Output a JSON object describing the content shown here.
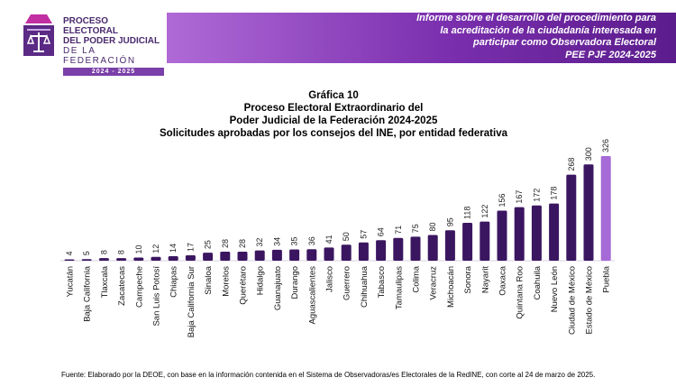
{
  "logo": {
    "line1": "PROCESO ELECTORAL",
    "line2": "DEL PODER JUDICIAL",
    "line3": "DE LA FEDERACIÓN",
    "years": "2024 - 2025"
  },
  "header": {
    "lines": [
      "Informe sobre el desarrollo del procedimiento para",
      "la acreditación de la ciudadanía interesada en",
      "participar como Observadora Electoral",
      "PEE PJF 2024-2025"
    ]
  },
  "chart_data": {
    "type": "bar",
    "title_lines": [
      "Gráfica 10",
      "Proceso Electoral Extraordinario del",
      "Poder Judicial de la Federación 2024-2025",
      "Solicitudes aprobadas por los consejos del INE, por entidad federativa"
    ],
    "categories": [
      "Yucatán",
      "Baja California",
      "Tlaxcala",
      "Zacatecas",
      "Campeche",
      "San Luis Potosí",
      "Chiapas",
      "Baja California Sur",
      "Sinaloa",
      "Morelos",
      "Querétaro",
      "Hidalgo",
      "Guanajuato",
      "Durango",
      "Aguascalientes",
      "Jalisco",
      "Guerrero",
      "Chihuahua",
      "Tabasco",
      "Tamaulipas",
      "Colima",
      "Veracruz",
      "Michoacán",
      "Sonora",
      "Nayarit",
      "Oaxaca",
      "Quintana Roo",
      "Coahuila",
      "Nuevo León",
      "Ciudad de México",
      "Estado de México",
      "Puebla"
    ],
    "values": [
      4,
      5,
      8,
      8,
      10,
      12,
      14,
      17,
      25,
      28,
      28,
      32,
      34,
      35,
      36,
      41,
      50,
      57,
      64,
      71,
      75,
      80,
      95,
      118,
      122,
      156,
      167,
      172,
      178,
      268,
      300,
      326
    ],
    "ylim": [
      0,
      326
    ],
    "grid": false,
    "data_labels": true,
    "colors": {
      "bar": "#3b1660",
      "highlight": "#a66ad8"
    },
    "highlight_category": "Puebla"
  },
  "footer": {
    "text": "Fuente: Elaborado por la DEOE, con base en la información contenida en el Sistema de Observadoras/es Electorales de la RedINE, con corte al 24 de marzo de 2025."
  }
}
